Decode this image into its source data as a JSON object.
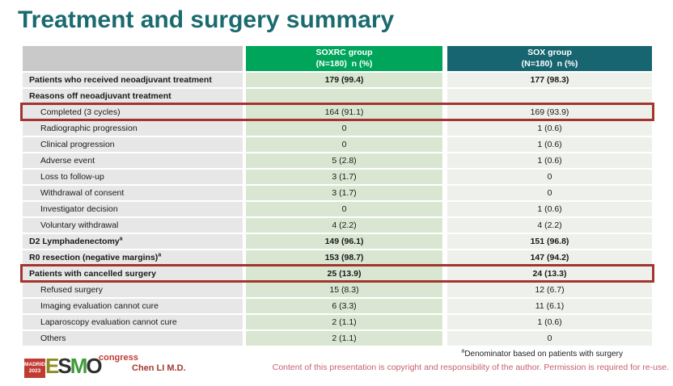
{
  "slide": {
    "title": "Treatment and surgery summary",
    "accent_colors": {
      "title_teal": "#1a6a6f",
      "soxrc_header_green": "#00a55c",
      "sox_header_teal": "#176570",
      "highlight_red": "#a3352e"
    }
  },
  "table": {
    "columns": [
      {
        "label": "",
        "sublabel": ""
      },
      {
        "label": "SOXRC group",
        "sublabel": "(N=180)  n (%)"
      },
      {
        "label": "SOX group",
        "sublabel": "(N=180)  n (%)"
      }
    ],
    "rows": [
      {
        "label": "Patients who received neoadjuvant treatment",
        "soxrc": "179 (99.4)",
        "sox": "177 (98.3)",
        "bold": true,
        "indent": false,
        "highlighted": false
      },
      {
        "label": "Reasons off neoadjuvant treatment",
        "soxrc": "",
        "sox": "",
        "bold": true,
        "indent": false,
        "highlighted": false
      },
      {
        "label": "Completed (3 cycles)",
        "soxrc": "164 (91.1)",
        "sox": "169 (93.9)",
        "bold": false,
        "indent": true,
        "highlighted": true
      },
      {
        "label": "Radiographic progression",
        "soxrc": "0",
        "sox": "1 (0.6)",
        "bold": false,
        "indent": true,
        "highlighted": false
      },
      {
        "label": "Clinical progression",
        "soxrc": "0",
        "sox": "1 (0.6)",
        "bold": false,
        "indent": true,
        "highlighted": false
      },
      {
        "label": "Adverse event",
        "soxrc": "5 (2.8)",
        "sox": "1 (0.6)",
        "bold": false,
        "indent": true,
        "highlighted": false
      },
      {
        "label": "Loss to follow-up",
        "soxrc": "3 (1.7)",
        "sox": "0",
        "bold": false,
        "indent": true,
        "highlighted": false
      },
      {
        "label": "Withdrawal of consent",
        "soxrc": "3 (1.7)",
        "sox": "0",
        "bold": false,
        "indent": true,
        "highlighted": false
      },
      {
        "label": "Investigator decision",
        "soxrc": "0",
        "sox": "1 (0.6)",
        "bold": false,
        "indent": true,
        "highlighted": false
      },
      {
        "label": "Voluntary withdrawal",
        "soxrc": "4 (2.2)",
        "sox": "4 (2.2)",
        "bold": false,
        "indent": true,
        "highlighted": false
      },
      {
        "label": "D2 Lymphadenectomy",
        "label_sup": "a",
        "soxrc": "149 (96.1)",
        "sox": "151 (96.8)",
        "bold": true,
        "indent": false,
        "highlighted": false
      },
      {
        "label": "R0 resection (negative margins)",
        "label_sup": "a",
        "soxrc": "153 (98.7)",
        "sox": "147 (94.2)",
        "bold": true,
        "indent": false,
        "highlighted": false
      },
      {
        "label": "Patients with cancelled surgery",
        "soxrc": "25 (13.9)",
        "sox": "24 (13.3)",
        "bold": true,
        "indent": false,
        "highlighted": true
      },
      {
        "label": "Refused surgery",
        "soxrc": "15 (8.3)",
        "sox": "12 (6.7)",
        "bold": false,
        "indent": true,
        "highlighted": false
      },
      {
        "label": "Imaging evaluation cannot cure",
        "soxrc": "6 (3.3)",
        "sox": "11 (6.1)",
        "bold": false,
        "indent": true,
        "highlighted": false
      },
      {
        "label": "Laparoscopy evaluation cannot cure",
        "soxrc": "2 (1.1)",
        "sox": "1 (0.6)",
        "bold": false,
        "indent": true,
        "highlighted": false
      },
      {
        "label": "Others",
        "soxrc": "2 (1.1)",
        "sox": "0",
        "bold": false,
        "indent": true,
        "highlighted": false
      }
    ]
  },
  "footer": {
    "logo": {
      "city": "MADRID",
      "year": "2023",
      "org_letters": [
        "E",
        "S",
        "M",
        "O"
      ],
      "suffix": "congress"
    },
    "presenter": "Chen LI M.D.",
    "footnote_sup": "a",
    "footnote": "Denominator based on patients with surgery",
    "copyright": "Content of this presentation is copyright and responsibility of the author. Permission is required for re-use."
  }
}
